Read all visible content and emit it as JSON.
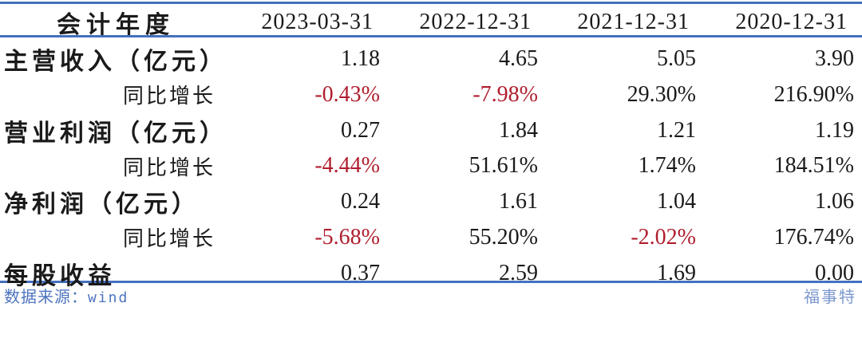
{
  "colors": {
    "rule_blue": "#4470BE",
    "text_black": "#1A1A1A",
    "negative_red": "#B01E2E",
    "footer_blue": "#4D74BE",
    "brand_blue": "#7E99CF"
  },
  "chart_data": {
    "type": "table",
    "header_label": "会计年度",
    "columns": [
      "2023-03-31",
      "2022-12-31",
      "2021-12-31",
      "2020-12-31"
    ],
    "rows": [
      {
        "label": "主营收入（亿元）",
        "kind": "metric",
        "values": [
          "1.18",
          "4.65",
          "5.05",
          "3.90"
        ]
      },
      {
        "label": "同比增长",
        "kind": "growth",
        "values": [
          "-0.43%",
          "-7.98%",
          "29.30%",
          "216.90%"
        ]
      },
      {
        "label": "营业利润（亿元）",
        "kind": "metric",
        "values": [
          "0.27",
          "1.84",
          "1.21",
          "1.19"
        ]
      },
      {
        "label": "同比增长",
        "kind": "growth",
        "values": [
          "-4.44%",
          "51.61%",
          "1.74%",
          "184.51%"
        ]
      },
      {
        "label": "净利润（亿元）",
        "kind": "metric",
        "values": [
          "0.24",
          "1.61",
          "1.04",
          "1.06"
        ]
      },
      {
        "label": "同比增长",
        "kind": "growth",
        "values": [
          "-5.68%",
          "55.20%",
          "-2.02%",
          "176.74%"
        ]
      },
      {
        "label": "每股收益",
        "kind": "metric",
        "values": [
          "0.37",
          "2.59",
          "1.69",
          "0.00"
        ]
      }
    ],
    "layout": {
      "negative_values_colored_red": true,
      "rules": "horizontal blue lines above header, below header, below last row"
    }
  },
  "footer": {
    "source_label": "数据来源：",
    "source_value": "wind",
    "brand": "福事特"
  }
}
